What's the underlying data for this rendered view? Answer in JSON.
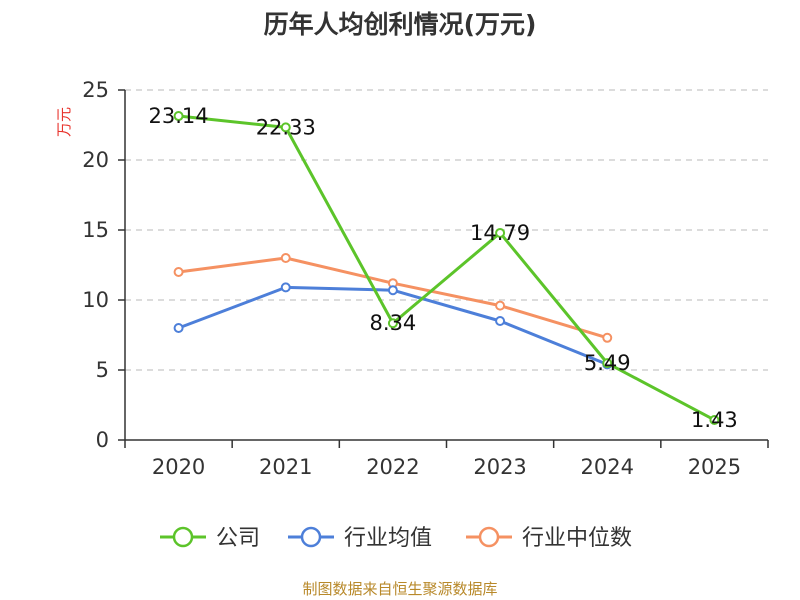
{
  "chart_data": {
    "type": "line",
    "title": "历年人均创利情况(万元)",
    "ylabel": "万元",
    "xlabel": "",
    "categories": [
      "2020",
      "2021",
      "2022",
      "2023",
      "2024",
      "2025"
    ],
    "ylim": [
      0,
      25
    ],
    "yticks": [
      0,
      5,
      10,
      15,
      20,
      25
    ],
    "grid": true,
    "legend_position": "bottom",
    "series": [
      {
        "name": "公司",
        "color": "#5cc42a",
        "values": [
          23.14,
          22.33,
          8.34,
          14.79,
          5.49,
          1.43
        ],
        "labels": [
          "23.14",
          "22.33",
          "8.34",
          "14.79",
          "5.49",
          "1.43"
        ]
      },
      {
        "name": "行业均值",
        "color": "#4d7fd9",
        "values": [
          8.0,
          10.9,
          10.7,
          8.5,
          5.4,
          null
        ]
      },
      {
        "name": "行业中位数",
        "color": "#f59162",
        "values": [
          12.0,
          13.0,
          11.2,
          9.6,
          7.3,
          null
        ]
      }
    ]
  },
  "footer": "制图数据来自恒生聚源数据库"
}
